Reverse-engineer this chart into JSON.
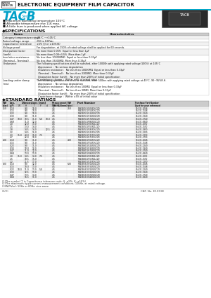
{
  "title": "ELECTRONIC EQUIPMENT FILM CAPACITOR",
  "tacb_color": "#00a0c8",
  "bullet_points": [
    "Maximum operating temperature 105°C",
    "Allowable temperature rise 11K max.",
    "A little hum is produced when applied AC voltage"
  ],
  "spec_rows": [
    [
      "Category temperature range",
      "-25°C ~+105°C"
    ],
    [
      "Rated voltage range",
      "250 to 630Vac"
    ],
    [
      "Capacitance tolerance",
      "±5% (J) or ±10%(K)"
    ],
    [
      "Voltage proof",
      "For degradation, at 150% of rated voltage shall be applied for 60 seconds."
    ],
    [
      "Dissipation factor\n(tanδ)",
      "No more than 0.05%  Equal or less than 1μF\nNo more than 0.08+3.5%  More than 1μF"
    ],
    [
      "Insulation resistance\n(Terminal - Terminal)",
      "No less than 100000MΩ  Equal or less than 0.33μF\nNo less than 33000MΩ  More than 0.33μF"
    ],
    [
      "Endurance",
      "The following specifications shall be satisfied, after 10000h with applying rated voltage(100%) at 105°C\n  Appearance :  No serious degradation\n  Insulation resistance :  No less than 10000MΩ  Equal or less than 0.33μF\n  (Terminal - Terminal) :  No less than 3300MΩ  More than 0.33μF\n  Dissipation factor (tanδ) :  No more than 200% of initial specification\n  Capacitance change :  Within ±5% of initial value"
    ],
    [
      "Loading under damp\nheat",
      "The following specifications shall be satisfied, after 500hrs with applying rated voltage at 40°C, 90~95%R.H.\n  Appearance :  No serious degradation\n  Insulation resistance :  No less than 100MΩ  Equal or less than 0.33μF\n  (Terminal - Terminal) :  No less than 30MΩ  More than 0.33μF\n  Dissipation factor (tanδ) :  No more than 200% of initial specification\n  Capacitance change :  Within ±5% of initial value"
    ]
  ],
  "spec_row_heights": [
    4.5,
    4.5,
    4.5,
    5.5,
    9.0,
    9.0,
    24.0,
    24.0
  ],
  "table_data": [
    [
      "250",
      "0.10",
      "",
      "9.0",
      "10.0",
      "",
      "",
      "4.5",
      "250",
      "",
      "FTACB251V104SDLCZ0",
      "30-331-1046"
    ],
    [
      "250",
      "0.15",
      "",
      "9.0",
      "10.0",
      "",
      "",
      "4.5",
      "",
      "",
      "FTACB251V154SDLCZ0",
      "30-331-1548"
    ],
    [
      "250",
      "0.22",
      "",
      "9.0",
      "10.0",
      "",
      "",
      "4.5",
      "",
      "",
      "FTACB251V224SDLCZ0",
      "30-431-2240"
    ],
    [
      "250",
      "0.33",
      "",
      "9.0",
      "11.0",
      "",
      "",
      "4.5",
      "",
      "",
      "FTACB251V334SDLCZ0",
      "30-431-3340"
    ],
    [
      "250",
      "0.47",
      "10.0",
      "10.5",
      "11.0",
      "5.0",
      "10.0",
      "4.5",
      "",
      "",
      "FTACB251V474SDLCZ0",
      "30-431-4740"
    ],
    [
      "250",
      "0.68",
      "",
      "11.0",
      "12.0",
      "",
      "",
      "4.5",
      "",
      "",
      "FTACB251V684SDLCZ0",
      "30-431-6840"
    ],
    [
      "250",
      "1.0",
      "",
      "12.0",
      "13.0",
      "",
      "",
      "4.5",
      "",
      "",
      "FTACB251V105SDLCZ0",
      "30-431-1050"
    ],
    [
      "250",
      "1.5",
      "",
      "13.0",
      "14.0",
      "",
      "",
      "4.5",
      "",
      "",
      "FTACB251V155SDLCZ0",
      "30-431-1550"
    ],
    [
      "250",
      "1.8",
      "",
      "14.5",
      "14.0",
      "",
      "12.5",
      "4.5",
      "",
      "",
      "FTACB251V185SDLCZ0",
      "30-431-1850"
    ],
    [
      "250",
      "2.2",
      "",
      "14.5",
      "15.0",
      "",
      "",
      "4.5",
      "",
      "",
      "FTACB251V225SDLCZ0",
      "30-431-2250"
    ],
    [
      "250",
      "3.3",
      "15.0",
      "20.0",
      "16.0",
      "7.5",
      "",
      "4.5",
      "",
      "",
      "FTACB251V335SDLCZ0",
      "30-431-3350"
    ],
    [
      "250",
      "4.7",
      "",
      "22.0",
      "18.0",
      "",
      "",
      "4.5",
      "",
      "",
      "FTACB251V475SDLCZ0",
      "30-431-4750"
    ],
    [
      "400",
      "0.10",
      "",
      "9.0",
      "11.0",
      "",
      "",
      "4.5",
      "400",
      "",
      "FTACB401V104SDLCZ0",
      "30-431-1046"
    ],
    [
      "400",
      "0.15",
      "",
      "9.0",
      "11.0",
      "",
      "",
      "4.5",
      "",
      "",
      "FTACB401V154SDLCZ0",
      "30-431-1548"
    ],
    [
      "400",
      "0.22",
      "",
      "9.0",
      "11.0",
      "",
      "",
      "4.5",
      "",
      "",
      "FTACB401V224SDLCZ0",
      "30-431-2240"
    ],
    [
      "400",
      "0.33",
      "",
      "10.0",
      "12.0",
      "",
      "",
      "4.5",
      "",
      "",
      "FTACB401V334SDLCZ0",
      "30-431-3340"
    ],
    [
      "400",
      "0.47",
      "",
      "11.0",
      "12.0",
      "",
      "",
      "4.5",
      "",
      "",
      "FTACB401V474SDLCZ0",
      "30-431-4740"
    ],
    [
      "400",
      "0.68",
      "",
      "13.0",
      "13.0",
      "",
      "",
      "4.5",
      "",
      "",
      "FTACB401V684SDLCZ0",
      "30-431-6840"
    ],
    [
      "400",
      "1.0",
      "15.0",
      "14.5",
      "14.0",
      "7.5",
      "",
      "4.5",
      "",
      "",
      "FTACB401V105SDLCZ0",
      "30-431-1050"
    ],
    [
      "400",
      "1.5",
      "",
      "18.5",
      "15.0",
      "",
      "",
      "4.5",
      "",
      "",
      "FTACB401V155SDLCZ0",
      "30-431-1550"
    ],
    [
      "400",
      "2.2",
      "",
      "21.5",
      "17.0",
      "",
      "",
      "4.5",
      "",
      "",
      "FTACB401V225SDLCZ0",
      "30-431-2250"
    ],
    [
      "630",
      "0.10",
      "",
      "9.0",
      "12.0",
      "",
      "",
      "4.5",
      "630",
      "",
      "FTACB631V104SDLCZ0",
      "30-431-1046"
    ],
    [
      "630",
      "0.15",
      "",
      "10.0",
      "13.0",
      "",
      "",
      "4.5",
      "",
      "",
      "FTACB631V154SDLCZ0",
      "30-431-1548"
    ],
    [
      "630",
      "0.22",
      "10.0",
      "11.0",
      "13.0",
      "5.0",
      "",
      "4.5",
      "",
      "",
      "FTACB631V224SDLCZ0",
      "30-431-2240"
    ],
    [
      "630",
      "0.33",
      "",
      "12.5",
      "13.0",
      "",
      "",
      "4.5",
      "",
      "",
      "FTACB631V334SDLCZ0",
      "30-431-3340"
    ],
    [
      "630",
      "0.47",
      "",
      "13.5",
      "14.0",
      "",
      "",
      "4.5",
      "",
      "",
      "FTACB631V474SDLCZ0",
      "30-431-4740"
    ],
    [
      "630",
      "0.68",
      "",
      "16.5",
      "15.0",
      "",
      "",
      "4.5",
      "",
      "",
      "FTACB631V684SDLCZ0",
      "30-431-6840"
    ]
  ],
  "footer_notes": [
    "(1)The symbol 'J' is Capacitance tolerance code: (J: ±5%, K: ±10%)",
    "(2)The maximum ripple current measurement conditions: 10kHz, at rated voltage.",
    "(3)WV(Vac): 50Hz or 60Hz, sine wave"
  ],
  "catalog_no": "CAT. No. E1003E",
  "page_no": "(1/2)"
}
